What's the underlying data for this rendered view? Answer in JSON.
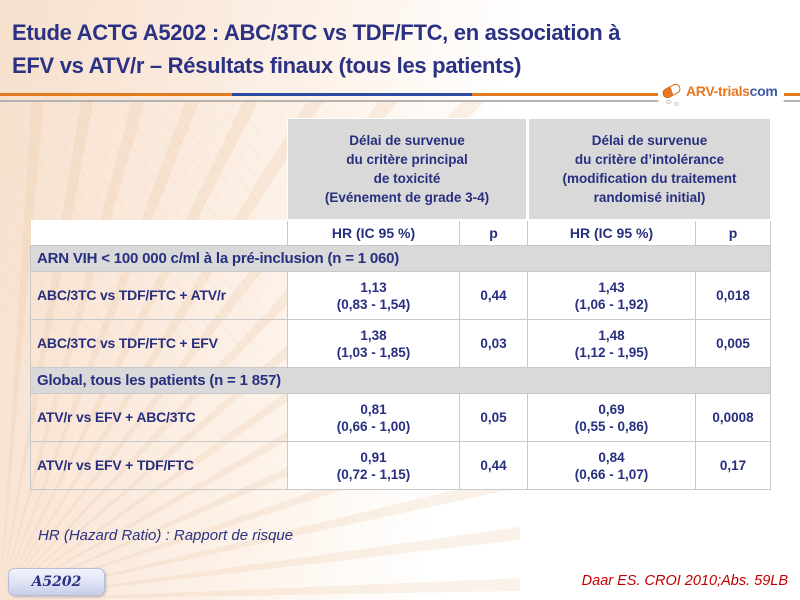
{
  "title": {
    "line1": "Etude ACTG A5202 : ABC/3TC vs TDF/FTC, en association à",
    "line2": "EFV vs ATV/r – Résultats finaux (tous les patients)"
  },
  "logo": {
    "text": "ARV-trials",
    "suffix": "com"
  },
  "colors": {
    "navy_text": "#272F7E",
    "title_navy": "#2B3183",
    "divider_orange": "#E07C1F",
    "divider_blue": "#2B4BA0",
    "divider_silver": "#B3B3B3",
    "header_gray": "#D9D9D9",
    "logo_orange": "#E87722",
    "reference_red": "#C00000",
    "background_peach": "#F6E0CD"
  },
  "table": {
    "group_headers": [
      {
        "l1": "Délai de survenue",
        "l2": "du critère principal",
        "l3": "de toxicité",
        "l4": "(Evénement de grade 3-4)"
      },
      {
        "l1": "Délai de survenue",
        "l2": "du critère d’intolérance",
        "l3": "(modification du traitement",
        "l4": "randomisé initial)"
      }
    ],
    "sub_headers": [
      "HR (IC 95 %)",
      "p",
      "HR (IC 95 %)",
      "p"
    ],
    "sections": [
      {
        "label": "ARN VIH < 100 000 c/ml à la pré-inclusion (n = 1 060)",
        "rows": [
          {
            "label": "ABC/3TC vs TDF/FTC + ATV/r",
            "hr1": "1,13",
            "ci1": "(0,83 - 1,54)",
            "p1": "0,44",
            "hr2": "1,43",
            "ci2": "(1,06 - 1,92)",
            "p2": "0,018"
          },
          {
            "label": "ABC/3TC vs TDF/FTC + EFV",
            "hr1": "1,38",
            "ci1": "(1,03 - 1,85)",
            "p1": "0,03",
            "hr2": "1,48",
            "ci2": "(1,12 - 1,95)",
            "p2": "0,005"
          }
        ]
      },
      {
        "label": "Global, tous les patients (n = 1 857)",
        "rows": [
          {
            "label": "ATV/r vs EFV + ABC/3TC",
            "hr1": "0,81",
            "ci1": "(0,66 - 1,00)",
            "p1": "0,05",
            "hr2": "0,69",
            "ci2": "(0,55 - 0,86)",
            "p2": "0,0008"
          },
          {
            "label": "ATV/r vs EFV + TDF/FTC",
            "hr1": "0,91",
            "ci1": "(0,72 - 1,15)",
            "p1": "0,44",
            "hr2": "0,84",
            "ci2": "(0,66 - 1,07)",
            "p2": "0,17"
          }
        ]
      }
    ]
  },
  "footnote": {
    "text": "HR (Hazard Ratio) : Rapport de risque"
  },
  "badge": {
    "label": "A5202"
  },
  "reference": {
    "text": "Daar ES. CROI 2010;Abs. 59LB"
  }
}
